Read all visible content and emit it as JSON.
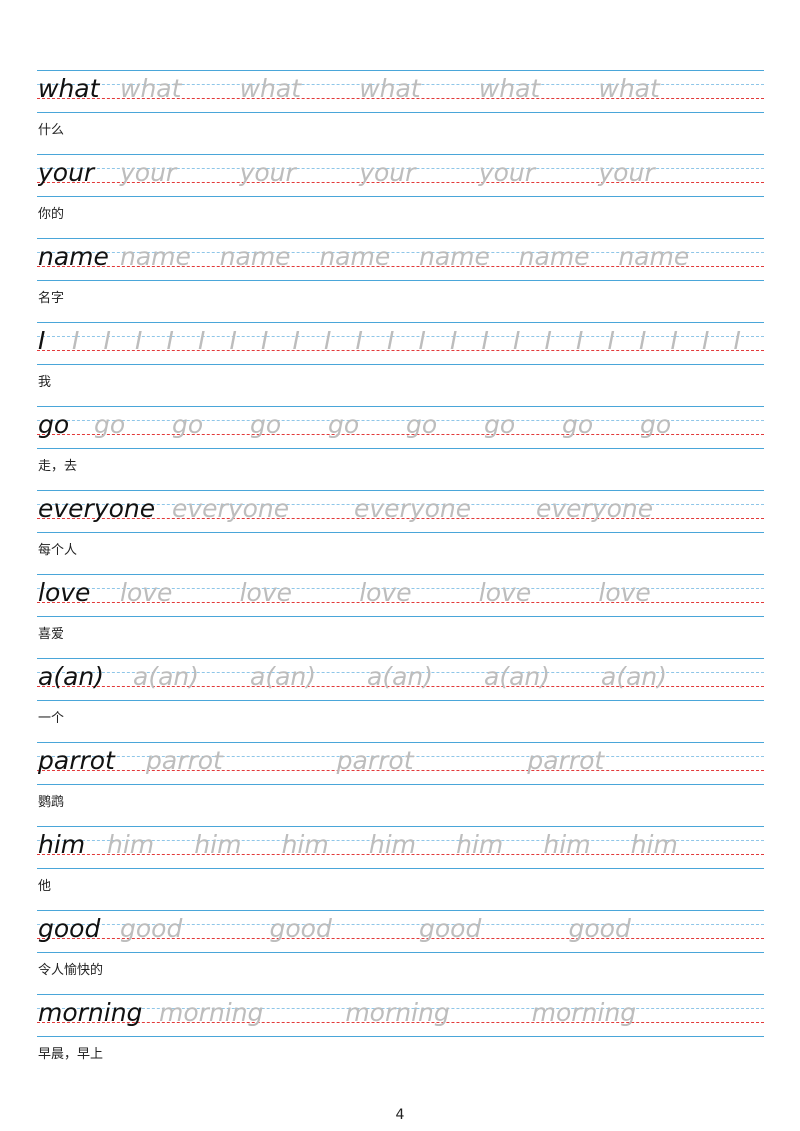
{
  "rows": [
    {
      "word": "what",
      "meaning": "什么",
      "reps": [
        "what",
        "what",
        "what",
        "what",
        "what"
      ]
    },
    {
      "word": "your",
      "meaning": "你的",
      "reps": [
        "your",
        "your",
        "your",
        "your",
        "your"
      ]
    },
    {
      "word": "name",
      "meaning": "名字",
      "reps": [
        "name",
        "name",
        "name",
        "name",
        "name",
        "name"
      ]
    },
    {
      "word": "I",
      "meaning": "我",
      "reps": [
        "I",
        "I",
        "I",
        "I",
        "I",
        "I",
        "I",
        "I",
        "I",
        "I",
        "I",
        "I",
        "I",
        "I",
        "I",
        "I",
        "I",
        "I",
        "I",
        "I",
        "I",
        "I"
      ]
    },
    {
      "word": "go",
      "meaning": "走，去",
      "reps": [
        "go",
        "go",
        "go",
        "go",
        "go",
        "go",
        "go",
        "go"
      ]
    },
    {
      "word": "everyone",
      "meaning": "每个人",
      "reps": [
        "everyone",
        "everyone",
        "everyone"
      ]
    },
    {
      "word": "love",
      "meaning": "喜爱",
      "reps": [
        "love",
        "love",
        "love",
        "love",
        "love"
      ]
    },
    {
      "word": "a(an)",
      "meaning": "一个",
      "reps": [
        "a(an)",
        "a(an)",
        "a(an)",
        "a(an)",
        "a(an)"
      ]
    },
    {
      "word": "parrot",
      "meaning": "鹦鹉",
      "reps": [
        "parrot",
        "parrot",
        "parrot"
      ]
    },
    {
      "word": "him",
      "meaning": "他",
      "reps": [
        "him",
        "him",
        "him",
        "him",
        "him",
        "him",
        "him"
      ]
    },
    {
      "word": "good",
      "meaning": "令人愉快的",
      "reps": [
        "good",
        "good",
        "good",
        "good"
      ]
    },
    {
      "word": "morning",
      "meaning": "早晨，早上",
      "reps": [
        "morning",
        "morning",
        "morning"
      ]
    }
  ],
  "page_number": "4"
}
